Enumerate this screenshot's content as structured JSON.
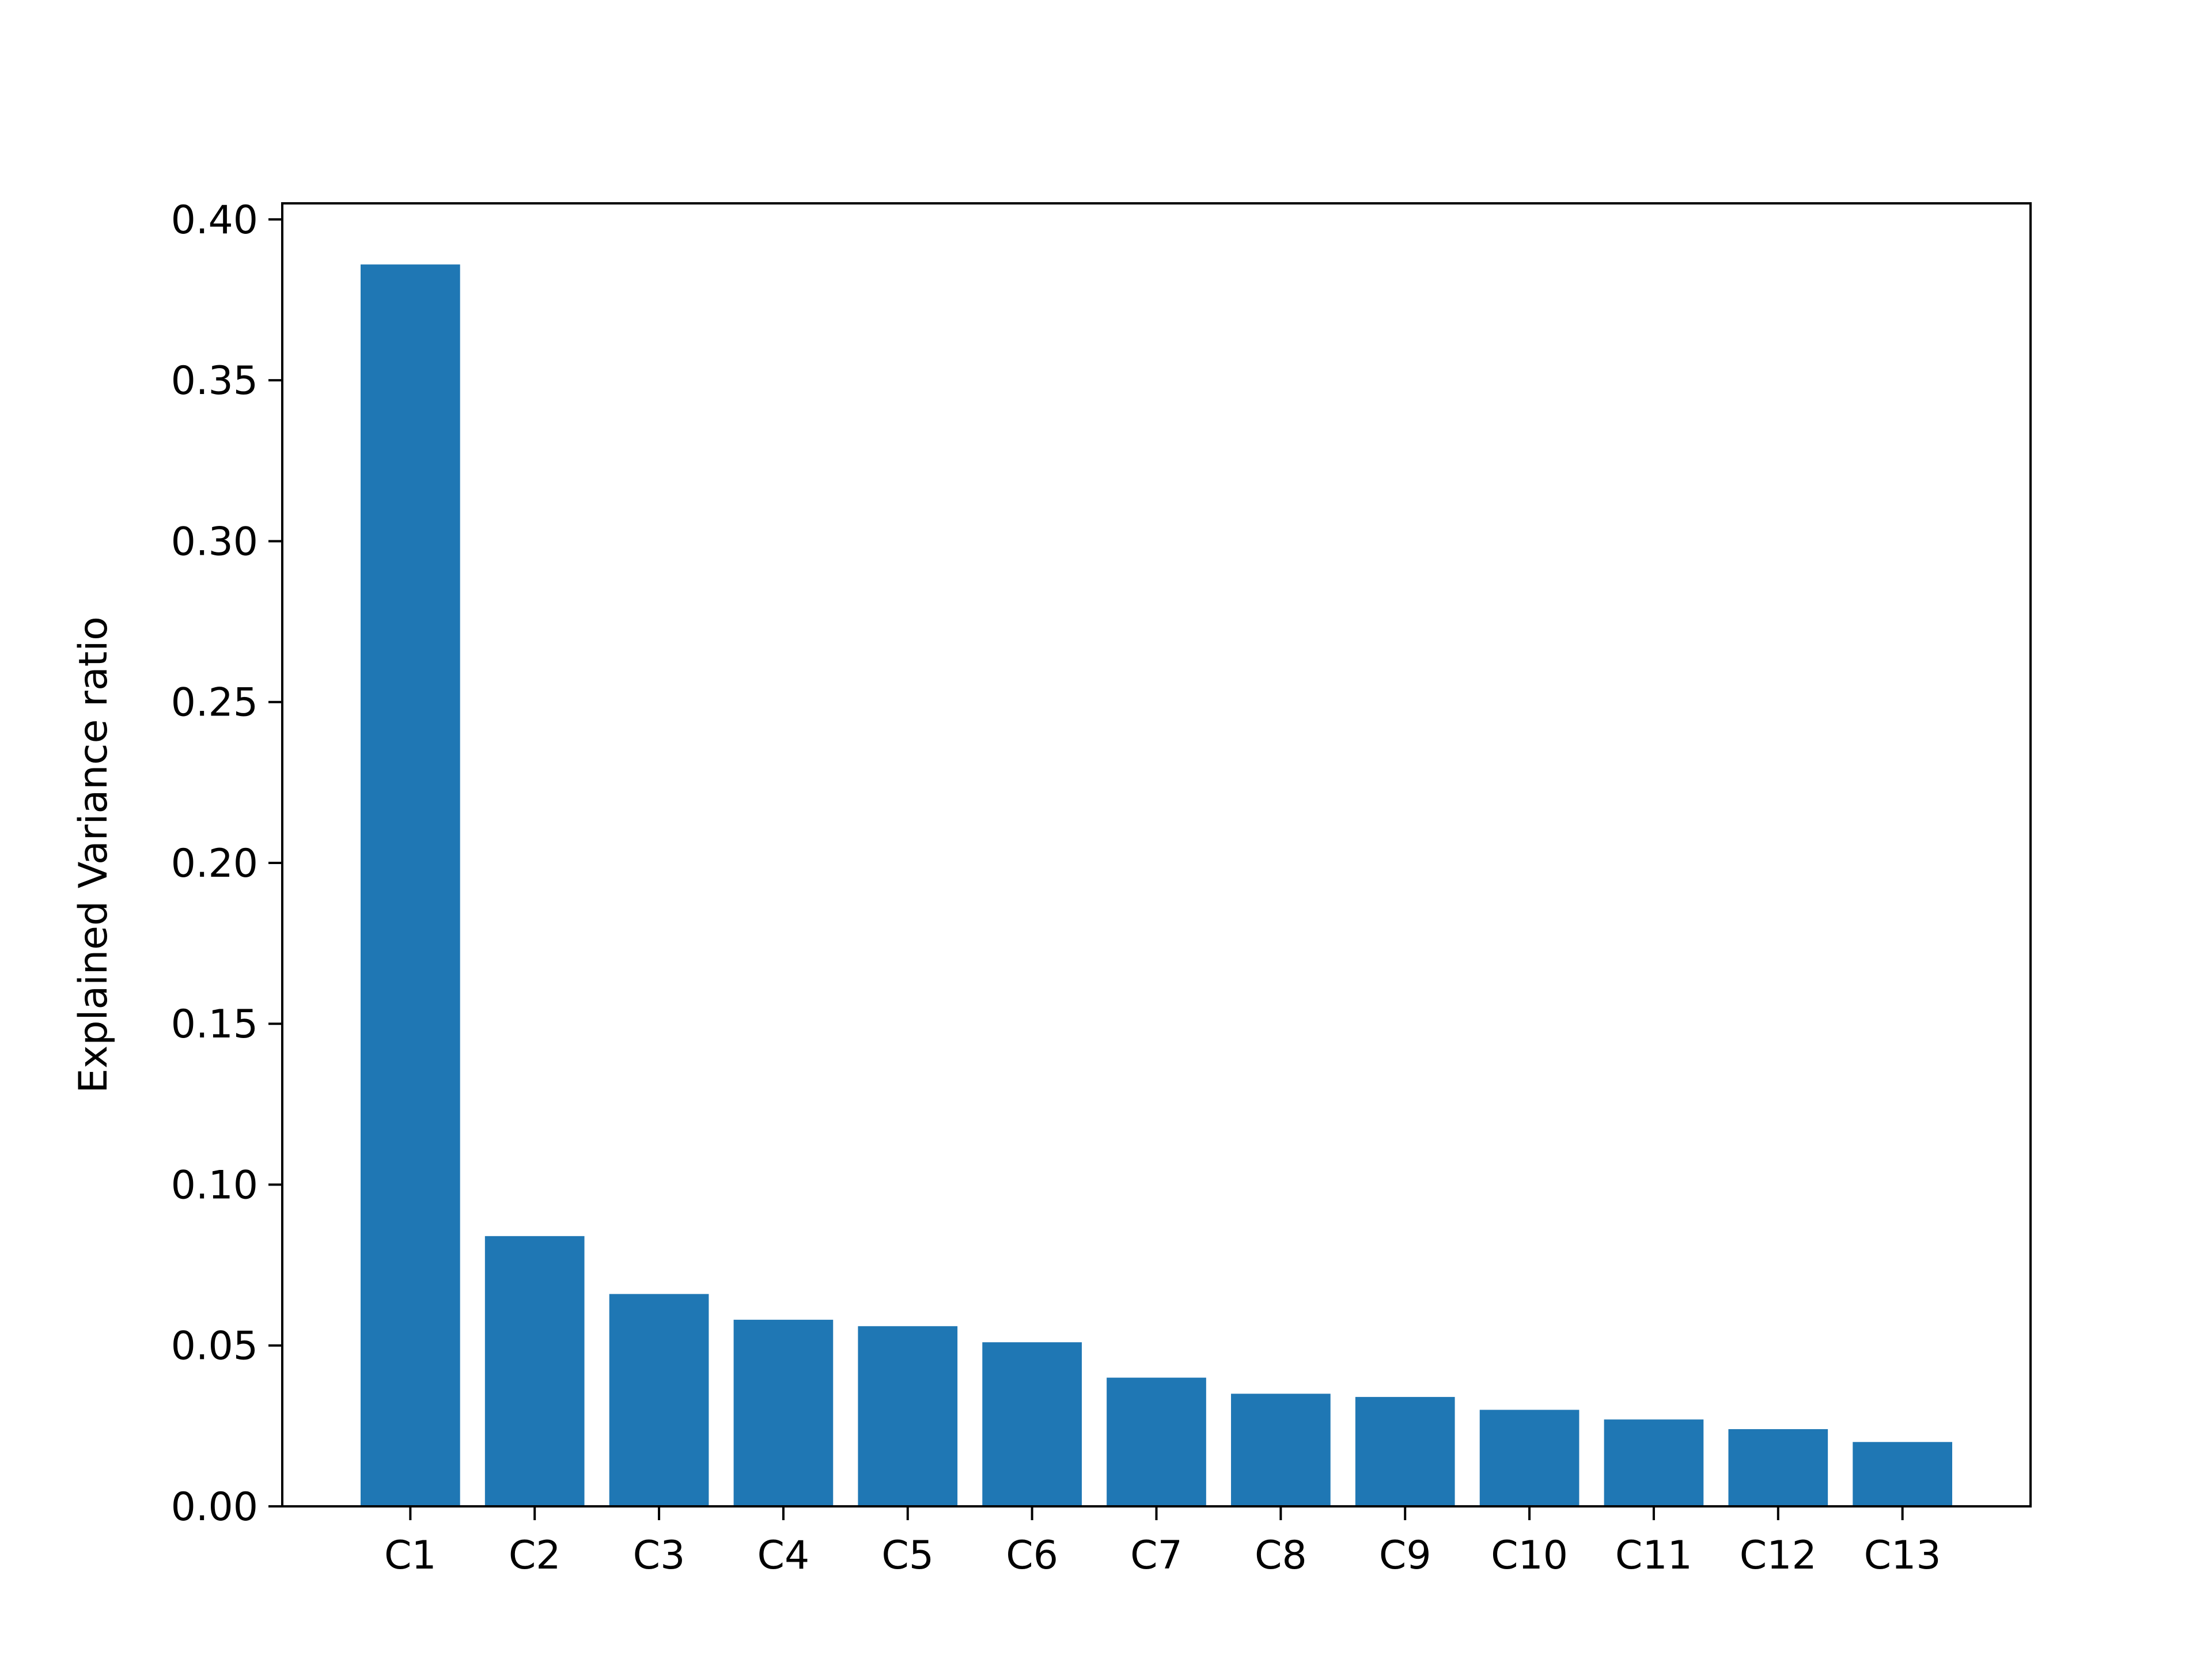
{
  "chart_data": {
    "type": "bar",
    "title": "",
    "xlabel": "",
    "ylabel": "Explained Variance ratio",
    "categories": [
      "C1",
      "C2",
      "C3",
      "C4",
      "C5",
      "C6",
      "C7",
      "C8",
      "C9",
      "C10",
      "C11",
      "C12",
      "C13"
    ],
    "values": [
      0.386,
      0.084,
      0.066,
      0.058,
      0.056,
      0.051,
      0.04,
      0.035,
      0.034,
      0.03,
      0.027,
      0.024,
      0.02
    ],
    "ylim": [
      0,
      0.405
    ],
    "yticks": [
      0.0,
      0.05,
      0.1,
      0.15,
      0.2,
      0.25,
      0.3,
      0.35,
      0.4
    ],
    "ytick_labels": [
      "0.00",
      "0.05",
      "0.10",
      "0.15",
      "0.20",
      "0.25",
      "0.30",
      "0.35",
      "0.40"
    ],
    "grid": false,
    "legend": "none",
    "bar_color": "#1f77b4"
  }
}
